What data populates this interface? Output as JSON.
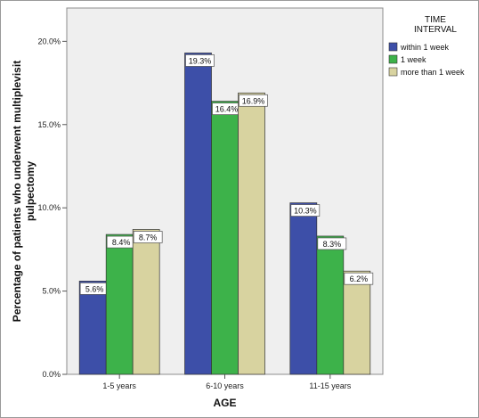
{
  "chart_data": {
    "type": "bar",
    "categories": [
      "1-5 years",
      "6-10 years",
      "11-15 years"
    ],
    "series": [
      {
        "name": "within 1 week",
        "values": [
          5.6,
          19.3,
          10.3
        ],
        "labels": [
          "5.6%",
          "19.3%",
          "10.3%"
        ],
        "color": "#3d4fa8"
      },
      {
        "name": "1 week",
        "values": [
          8.4,
          16.4,
          8.3
        ],
        "labels": [
          "8.4%",
          "16.4%",
          "8.3%"
        ],
        "color": "#3db24a"
      },
      {
        "name": "more than 1 week",
        "values": [
          8.7,
          16.9,
          6.2
        ],
        "labels": [
          "8.7%",
          "16.9%",
          "6.2%"
        ],
        "color": "#d8d3a0"
      }
    ],
    "xlabel": "AGE",
    "ylabel_lines": [
      "Percentage of patients who underwent multiplevisit",
      "pulpectomy"
    ],
    "ylim": [
      0,
      22
    ],
    "yticks": [
      0,
      5,
      10,
      15,
      20
    ],
    "ytick_labels": [
      "0.0%",
      "5.0%",
      "10.0%",
      "15.0%",
      "20.0%"
    ],
    "legend": {
      "title_lines": [
        "TIME",
        "INTERVAL"
      ],
      "position": "right"
    },
    "plot_background": "#efefef",
    "grid": false
  }
}
